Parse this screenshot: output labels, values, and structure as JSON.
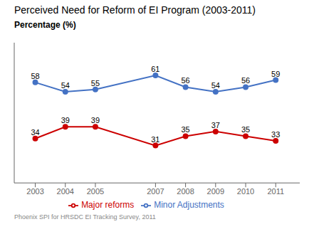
{
  "chart_data": {
    "type": "line",
    "title": "Perceived Need for Reform of EI Program (2003-2011)",
    "ylabel": "Percentage (%)",
    "x": [
      2003,
      2004,
      2005,
      2007,
      2008,
      2009,
      2010,
      2011
    ],
    "series": [
      {
        "name": "Minor Adjustments",
        "color": "#4472C4",
        "marker": "circle",
        "values": [
          58,
          54,
          55,
          61,
          56,
          54,
          56,
          59
        ]
      },
      {
        "name": "Major reforms",
        "color": "#CC0000",
        "marker": "circle",
        "values": [
          34,
          39,
          39,
          31,
          35,
          37,
          35,
          33
        ]
      }
    ],
    "xlim": [
      2002.3,
      2011.8
    ],
    "xticks": [
      2003,
      2004,
      2005,
      2007,
      2008,
      2009,
      2010,
      2011
    ],
    "ylim": [
      15,
      75
    ],
    "data_labels": true,
    "tick_labels": "x",
    "grid": false,
    "legend": "bottom",
    "annotations": [
      "Phoenix SPI for HRSDC EI Tracking Survey, 2011"
    ]
  }
}
